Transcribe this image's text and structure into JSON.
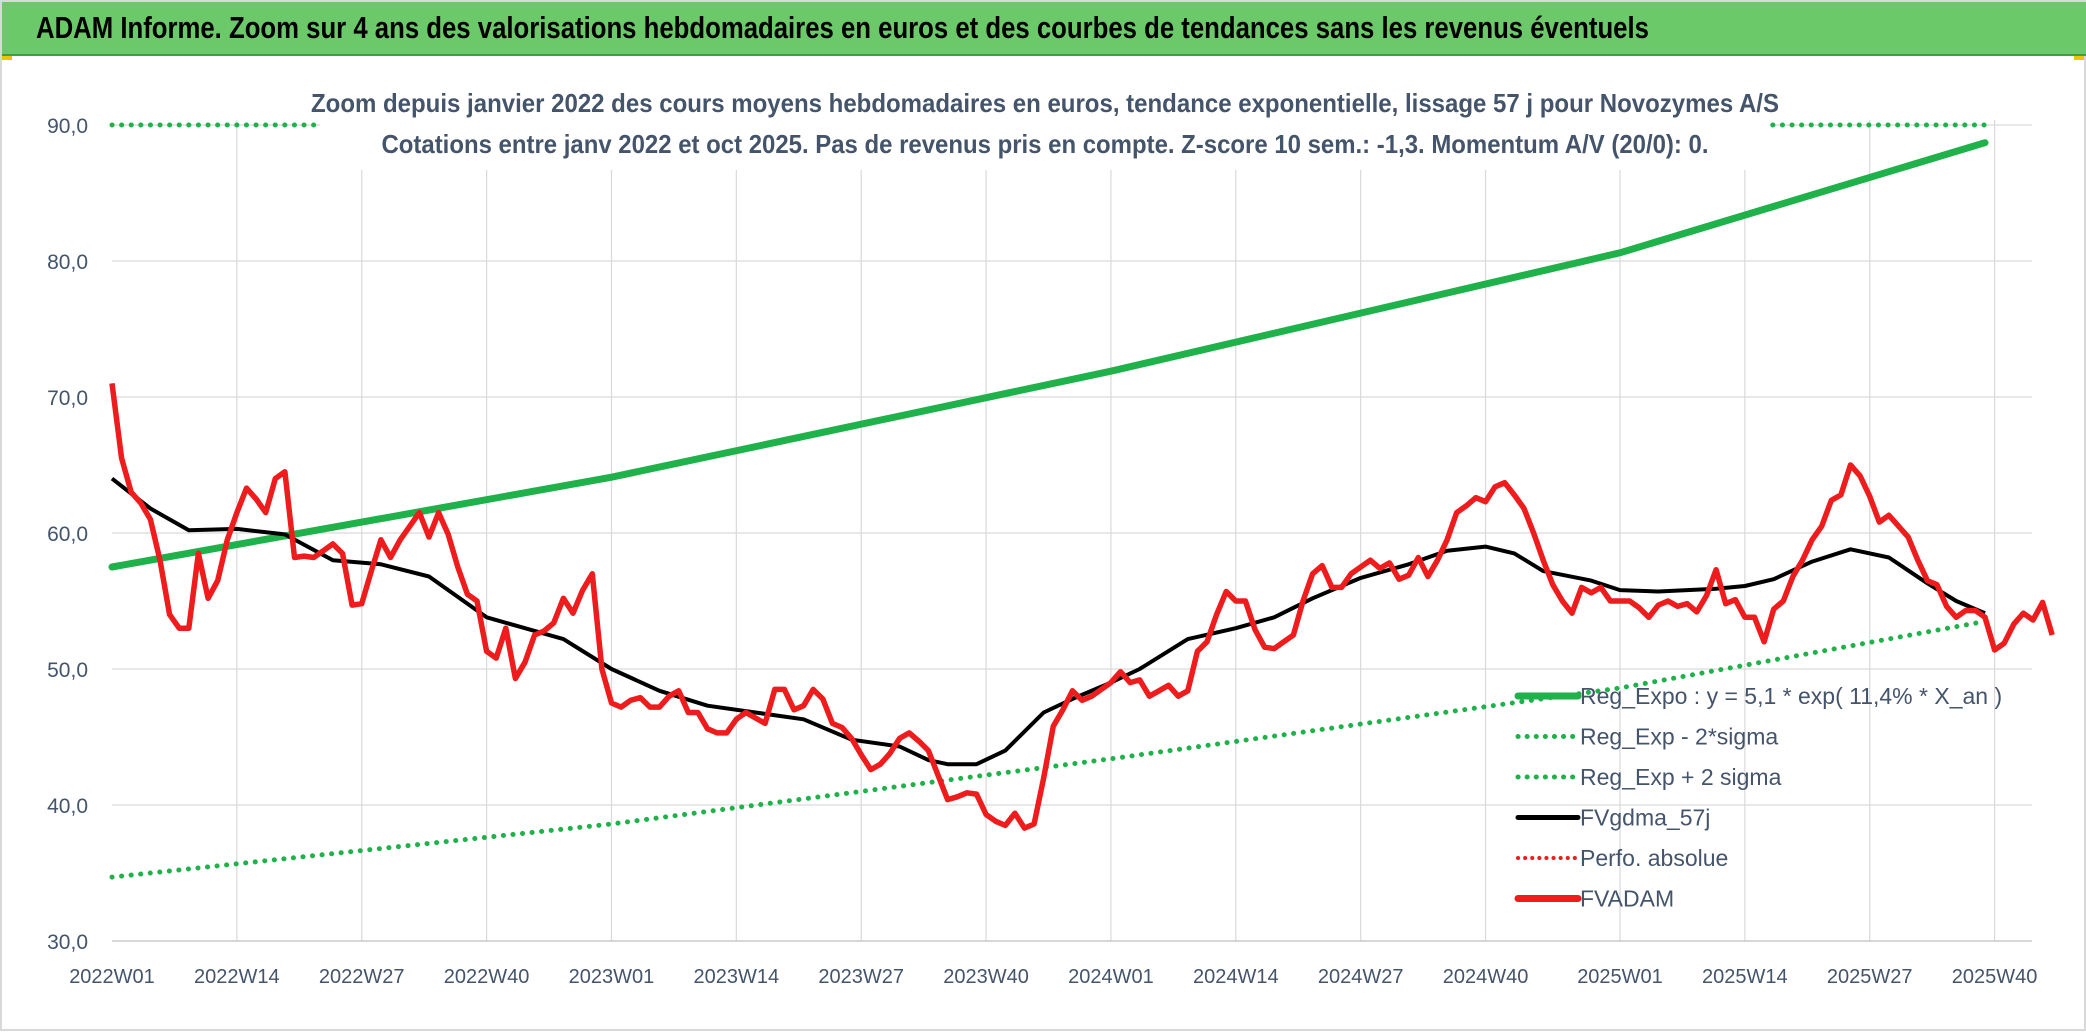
{
  "header": {
    "title": "ADAM Informe. Zoom sur 4 ans des valorisations hebdomadaires en euros et des courbes de tendances sans les revenus éventuels"
  },
  "colors": {
    "trend": "#1fb14a",
    "band": "#1fb14a",
    "smooth": "#000000",
    "price": "#ee1c1c",
    "perfo": "#ee1c1c",
    "grid": "#d9d9d9",
    "text": "#44546a",
    "header_bg": "#6cc96a"
  },
  "chart_data": {
    "type": "line",
    "title_line1": "Zoom depuis janvier 2022 des cours moyens hebdomadaires en euros, tendance exponentielle, lissage 57 j pour Novozymes A/S",
    "title_line2": "Cotations entre janv 2022 et oct 2025. Pas de revenus pris en compte. Z-score 10 sem.: -1,3. Momentum A/V (20/0): 0.",
    "ylim": [
      30,
      90
    ],
    "yticks": [
      "30,0",
      "40,0",
      "50,0",
      "60,0",
      "70,0",
      "80,0",
      "90,0"
    ],
    "x_range_weeks": [
      1,
      196
    ],
    "x_ticks": [
      {
        "label": "2022W01",
        "week": 1
      },
      {
        "label": "2022W14",
        "week": 14
      },
      {
        "label": "2022W27",
        "week": 27
      },
      {
        "label": "2022W40",
        "week": 40
      },
      {
        "label": "2023W01",
        "week": 53
      },
      {
        "label": "2023W14",
        "week": 66
      },
      {
        "label": "2023W27",
        "week": 79
      },
      {
        "label": "2023W40",
        "week": 92
      },
      {
        "label": "2024W01",
        "week": 105
      },
      {
        "label": "2024W14",
        "week": 118
      },
      {
        "label": "2024W27",
        "week": 131
      },
      {
        "label": "2024W40",
        "week": 144
      },
      {
        "label": "2025W01",
        "week": 158
      },
      {
        "label": "2025W14",
        "week": 171
      },
      {
        "label": "2025W27",
        "week": 184
      },
      {
        "label": "2025W40",
        "week": 197
      }
    ],
    "legend": [
      {
        "key": "reg_expo",
        "label": "Reg_Expo : y = 5,1 * exp( 11,4% *  X_an )"
      },
      {
        "key": "reg_minus",
        "label": "Reg_Exp - 2*sigma"
      },
      {
        "key": "reg_plus",
        "label": "Reg_Exp + 2 sigma"
      },
      {
        "key": "fvgdma",
        "label": "FVgdma_57j"
      },
      {
        "key": "perfo",
        "label": "Perfo. absolue"
      },
      {
        "key": "fvadam",
        "label": "FVADAM"
      }
    ],
    "series": [
      {
        "name": "Reg_Expo",
        "points": [
          [
            1,
            57.5
          ],
          [
            53,
            64.1
          ],
          [
            105,
            71.9
          ],
          [
            158,
            80.6
          ],
          [
            196,
            88.7
          ]
        ]
      },
      {
        "name": "Reg_Exp - 2*sigma",
        "points": [
          [
            1,
            34.7
          ],
          [
            53,
            38.6
          ],
          [
            105,
            43.4
          ],
          [
            158,
            48.6
          ],
          [
            196,
            53.5
          ]
        ]
      },
      {
        "name": "Reg_Exp + 2 sigma",
        "points": [
          [
            1,
            90.0
          ],
          [
            196,
            90.0
          ]
        ]
      },
      {
        "name": "FVgdma_57j",
        "points": [
          [
            1,
            64.0
          ],
          [
            5,
            61.8
          ],
          [
            9,
            60.2
          ],
          [
            14,
            60.3
          ],
          [
            19,
            59.9
          ],
          [
            24,
            58.0
          ],
          [
            29,
            57.7
          ],
          [
            34,
            56.8
          ],
          [
            40,
            53.8
          ],
          [
            44,
            53.0
          ],
          [
            48,
            52.2
          ],
          [
            53,
            50.0
          ],
          [
            58,
            48.4
          ],
          [
            63,
            47.3
          ],
          [
            68,
            46.8
          ],
          [
            73,
            46.3
          ],
          [
            78,
            44.8
          ],
          [
            83,
            44.3
          ],
          [
            86,
            43.3
          ],
          [
            88,
            43.0
          ],
          [
            91,
            43.0
          ],
          [
            94,
            44.0
          ],
          [
            98,
            46.8
          ],
          [
            101,
            47.8
          ],
          [
            105,
            49.0
          ],
          [
            108,
            50.0
          ],
          [
            113,
            52.2
          ],
          [
            118,
            53.0
          ],
          [
            122,
            53.8
          ],
          [
            126,
            55.2
          ],
          [
            131,
            56.7
          ],
          [
            136,
            57.7
          ],
          [
            140,
            58.7
          ],
          [
            144,
            59.0
          ],
          [
            147,
            58.5
          ],
          [
            150,
            57.2
          ],
          [
            155,
            56.5
          ],
          [
            158,
            55.8
          ],
          [
            162,
            55.7
          ],
          [
            168,
            55.9
          ],
          [
            171,
            56.1
          ],
          [
            174,
            56.6
          ],
          [
            178,
            57.9
          ],
          [
            182,
            58.8
          ],
          [
            186,
            58.2
          ],
          [
            190,
            56.3
          ],
          [
            193,
            55.0
          ],
          [
            196,
            54.1
          ]
        ]
      },
      {
        "name": "FVADAM",
        "points": [
          [
            1,
            71.0
          ],
          [
            2,
            65.5
          ],
          [
            3,
            63.0
          ],
          [
            4,
            62.2
          ],
          [
            5,
            61.0
          ],
          [
            6,
            58.0
          ],
          [
            7,
            54.0
          ],
          [
            8,
            53.0
          ],
          [
            9,
            53.0
          ],
          [
            10,
            58.5
          ],
          [
            11,
            55.2
          ],
          [
            12,
            56.5
          ],
          [
            13,
            59.5
          ],
          [
            14,
            61.5
          ],
          [
            15,
            63.3
          ],
          [
            16,
            62.5
          ],
          [
            17,
            61.5
          ],
          [
            18,
            64.0
          ],
          [
            19,
            64.5
          ],
          [
            20,
            58.2
          ],
          [
            21,
            58.3
          ],
          [
            22,
            58.2
          ],
          [
            23,
            58.7
          ],
          [
            24,
            59.2
          ],
          [
            25,
            58.5
          ],
          [
            26,
            54.7
          ],
          [
            27,
            54.8
          ],
          [
            28,
            57.2
          ],
          [
            29,
            59.5
          ],
          [
            30,
            58.2
          ],
          [
            31,
            59.5
          ],
          [
            32,
            60.5
          ],
          [
            33,
            61.5
          ],
          [
            34,
            59.7
          ],
          [
            35,
            61.5
          ],
          [
            36,
            59.9
          ],
          [
            37,
            57.5
          ],
          [
            38,
            55.5
          ],
          [
            39,
            55.0
          ],
          [
            40,
            51.3
          ],
          [
            41,
            50.8
          ],
          [
            42,
            53.0
          ],
          [
            43,
            49.3
          ],
          [
            44,
            50.5
          ],
          [
            45,
            52.5
          ],
          [
            46,
            52.8
          ],
          [
            47,
            53.4
          ],
          [
            48,
            55.2
          ],
          [
            49,
            54.1
          ],
          [
            50,
            55.8
          ],
          [
            51,
            57.0
          ],
          [
            52,
            50.0
          ],
          [
            53,
            47.5
          ],
          [
            54,
            47.2
          ],
          [
            55,
            47.7
          ],
          [
            56,
            47.9
          ],
          [
            57,
            47.2
          ],
          [
            58,
            47.2
          ],
          [
            59,
            48.0
          ],
          [
            60,
            48.4
          ],
          [
            61,
            46.8
          ],
          [
            62,
            46.8
          ],
          [
            63,
            45.6
          ],
          [
            64,
            45.3
          ],
          [
            65,
            45.3
          ],
          [
            66,
            46.3
          ],
          [
            67,
            46.8
          ],
          [
            68,
            46.4
          ],
          [
            69,
            46.0
          ],
          [
            70,
            48.5
          ],
          [
            71,
            48.5
          ],
          [
            72,
            47.0
          ],
          [
            73,
            47.3
          ],
          [
            74,
            48.5
          ],
          [
            75,
            47.8
          ],
          [
            76,
            46.0
          ],
          [
            77,
            45.7
          ],
          [
            78,
            44.9
          ],
          [
            79,
            43.7
          ],
          [
            80,
            42.6
          ],
          [
            81,
            43.0
          ],
          [
            82,
            43.8
          ],
          [
            83,
            44.9
          ],
          [
            84,
            45.3
          ],
          [
            85,
            44.7
          ],
          [
            86,
            44.0
          ],
          [
            87,
            42.2
          ],
          [
            88,
            40.4
          ],
          [
            89,
            40.6
          ],
          [
            90,
            40.9
          ],
          [
            91,
            40.8
          ],
          [
            92,
            39.3
          ],
          [
            93,
            38.8
          ],
          [
            94,
            38.5
          ],
          [
            95,
            39.4
          ],
          [
            96,
            38.3
          ],
          [
            97,
            38.6
          ],
          [
            98,
            42.0
          ],
          [
            99,
            45.8
          ],
          [
            100,
            47.0
          ],
          [
            101,
            48.4
          ],
          [
            102,
            47.7
          ],
          [
            103,
            48.0
          ],
          [
            104,
            48.5
          ],
          [
            105,
            49.0
          ],
          [
            106,
            49.8
          ],
          [
            107,
            49.0
          ],
          [
            108,
            49.2
          ],
          [
            109,
            48.0
          ],
          [
            110,
            48.4
          ],
          [
            111,
            48.8
          ],
          [
            112,
            48.0
          ],
          [
            113,
            48.4
          ],
          [
            114,
            51.3
          ],
          [
            115,
            52.0
          ],
          [
            116,
            54.0
          ],
          [
            117,
            55.7
          ],
          [
            118,
            55.0
          ],
          [
            119,
            55.0
          ],
          [
            120,
            52.9
          ],
          [
            121,
            51.6
          ],
          [
            122,
            51.5
          ],
          [
            123,
            52.0
          ],
          [
            124,
            52.5
          ],
          [
            125,
            55.0
          ],
          [
            126,
            57.0
          ],
          [
            127,
            57.6
          ],
          [
            128,
            56.0
          ],
          [
            129,
            56.0
          ],
          [
            130,
            57.0
          ],
          [
            131,
            57.5
          ],
          [
            132,
            58.0
          ],
          [
            133,
            57.4
          ],
          [
            134,
            57.8
          ],
          [
            135,
            56.6
          ],
          [
            136,
            56.9
          ],
          [
            137,
            58.2
          ],
          [
            138,
            56.8
          ],
          [
            139,
            58.0
          ],
          [
            140,
            59.5
          ],
          [
            141,
            61.5
          ],
          [
            142,
            62.0
          ],
          [
            143,
            62.6
          ],
          [
            144,
            62.3
          ],
          [
            145,
            63.4
          ],
          [
            146,
            63.7
          ],
          [
            147,
            62.8
          ],
          [
            148,
            61.8
          ],
          [
            149,
            60.0
          ],
          [
            150,
            58.0
          ],
          [
            151,
            56.2
          ],
          [
            152,
            55.0
          ],
          [
            153,
            54.1
          ],
          [
            154,
            56.0
          ],
          [
            155,
            55.6
          ],
          [
            156,
            56.0
          ],
          [
            157,
            55.0
          ],
          [
            158,
            55.0
          ],
          [
            159,
            55.0
          ],
          [
            160,
            54.5
          ],
          [
            161,
            53.8
          ],
          [
            162,
            54.7
          ],
          [
            163,
            55.0
          ],
          [
            164,
            54.6
          ],
          [
            165,
            54.8
          ],
          [
            166,
            54.2
          ],
          [
            167,
            55.4
          ],
          [
            168,
            57.3
          ],
          [
            169,
            54.8
          ],
          [
            170,
            55.1
          ],
          [
            171,
            53.8
          ],
          [
            172,
            53.8
          ],
          [
            173,
            52.0
          ],
          [
            174,
            54.4
          ],
          [
            175,
            55.0
          ],
          [
            176,
            56.8
          ],
          [
            177,
            58.0
          ],
          [
            178,
            59.5
          ],
          [
            179,
            60.5
          ],
          [
            180,
            62.4
          ],
          [
            181,
            62.8
          ],
          [
            182,
            65.0
          ],
          [
            183,
            64.2
          ],
          [
            184,
            62.7
          ],
          [
            185,
            60.8
          ],
          [
            186,
            61.3
          ],
          [
            187,
            60.5
          ],
          [
            188,
            59.7
          ],
          [
            189,
            58.0
          ],
          [
            190,
            56.5
          ],
          [
            191,
            56.2
          ],
          [
            192,
            54.6
          ],
          [
            193,
            53.8
          ],
          [
            194,
            54.3
          ],
          [
            195,
            54.3
          ],
          [
            196,
            53.8
          ],
          [
            197,
            51.4
          ],
          [
            198,
            51.9
          ],
          [
            199,
            53.3
          ],
          [
            200,
            54.1
          ],
          [
            201,
            53.6
          ],
          [
            202,
            54.9
          ],
          [
            203,
            52.5
          ]
        ]
      }
    ]
  }
}
